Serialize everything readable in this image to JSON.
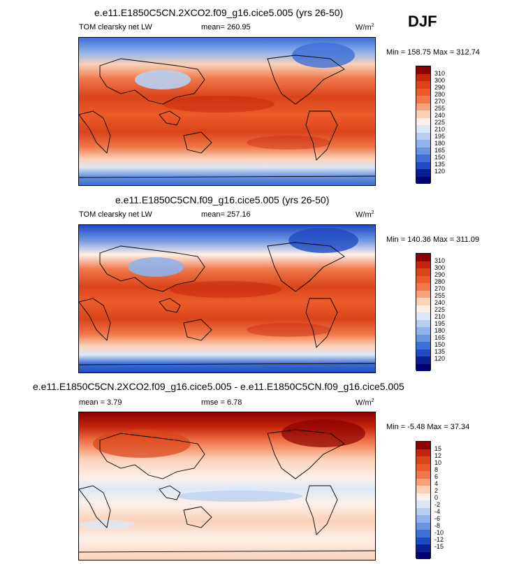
{
  "season": "DJF",
  "panels": [
    {
      "title": "e.e11.E1850C5CN.2XCO2.f09_g16.cice5.005 (yrs 26-50)",
      "left_label": "TOM clearsky net LW",
      "mean_label": "mean= 260.95",
      "rmse_label": "",
      "units": "W/m",
      "units_sup": "2",
      "minmax": "Min = 158.75 Max = 312.74",
      "levels": [
        "310",
        "300",
        "290",
        "280",
        "270",
        "255",
        "240",
        "225",
        "210",
        "195",
        "180",
        "165",
        "150",
        "135",
        "120"
      ],
      "colors": [
        "#8b0000",
        "#c4260c",
        "#d9441a",
        "#ea5c2a",
        "#f0784a",
        "#f6a27c",
        "#fbd1b8",
        "#fdf0e8",
        "#dce8f7",
        "#b8cff0",
        "#8fb3ea",
        "#6a93e0",
        "#3d6fd6",
        "#1f4ac2",
        "#0a1f94",
        "#00006e"
      ]
    },
    {
      "title": "e.e11.E1850C5CN.f09_g16.cice5.005 (yrs 26-50)",
      "left_label": "TOM clearsky net LW",
      "mean_label": "mean= 257.16",
      "rmse_label": "",
      "units": "W/m",
      "units_sup": "2",
      "minmax": "Min = 140.36 Max = 311.09",
      "levels": [
        "310",
        "300",
        "290",
        "280",
        "270",
        "255",
        "240",
        "225",
        "210",
        "195",
        "180",
        "165",
        "150",
        "135",
        "120"
      ],
      "colors": [
        "#8b0000",
        "#c4260c",
        "#d9441a",
        "#ea5c2a",
        "#f0784a",
        "#f6a27c",
        "#fbd1b8",
        "#fdf0e8",
        "#dce8f7",
        "#b8cff0",
        "#8fb3ea",
        "#6a93e0",
        "#3d6fd6",
        "#1f4ac2",
        "#0a1f94",
        "#00006e"
      ]
    },
    {
      "title": "e.e11.E1850C5CN.2XCO2.f09_g16.cice5.005 - e.e11.E1850C5CN.f09_g16.cice5.005",
      "left_label": "mean =   3.79",
      "mean_label": "",
      "rmse_label": "rmse =   6.78",
      "units": "W/m",
      "units_sup": "2",
      "minmax": "Min = -5.48 Max = 37.34",
      "levels": [
        "15",
        "12",
        "10",
        "8",
        "6",
        "4",
        "2",
        "0",
        "-2",
        "-4",
        "-6",
        "-8",
        "-10",
        "-12",
        "-15"
      ],
      "colors": [
        "#8b0000",
        "#c4260c",
        "#d9441a",
        "#ea5c2a",
        "#f0784a",
        "#f6a27c",
        "#fbd1b8",
        "#fdf0e8",
        "#dce8f7",
        "#b8cff0",
        "#8fb3ea",
        "#6a93e0",
        "#3d6fd6",
        "#1f4ac2",
        "#0a1f94",
        "#00006e"
      ]
    }
  ]
}
